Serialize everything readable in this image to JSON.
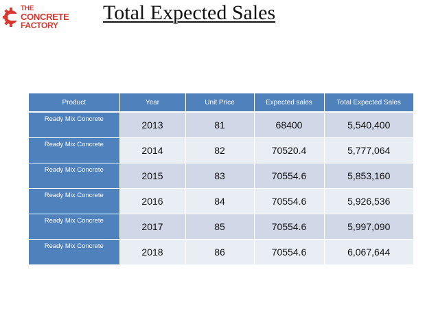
{
  "logo": {
    "line1": "THE",
    "line2": "CONCRETE",
    "line3": "FACTORY",
    "color": "#d6392f"
  },
  "title": "Total Expected Sales",
  "table": {
    "headers": [
      "Product",
      "Year",
      "Unit Price",
      "Expected sales",
      "Total Expected Sales"
    ],
    "rows": [
      {
        "product": "Ready Mix Concrete",
        "year": "2013",
        "unit_price": "81",
        "expected_sales": "68400",
        "total_expected_sales": "5,540,400"
      },
      {
        "product": "Ready Mix Concrete",
        "year": "2014",
        "unit_price": "82",
        "expected_sales": "70520.4",
        "total_expected_sales": "5,777,064"
      },
      {
        "product": "Ready Mix Concrete",
        "year": "2015",
        "unit_price": "83",
        "expected_sales": "70554.6",
        "total_expected_sales": "5,853,160"
      },
      {
        "product": "Ready Mix Concrete",
        "year": "2016",
        "unit_price": "84",
        "expected_sales": "70554.6",
        "total_expected_sales": "5,926,536"
      },
      {
        "product": "Ready Mix Concrete",
        "year": "2017",
        "unit_price": "85",
        "expected_sales": "70554.6",
        "total_expected_sales": "5,997,090"
      },
      {
        "product": "Ready Mix Concrete",
        "year": "2018",
        "unit_price": "86",
        "expected_sales": "70554.6",
        "total_expected_sales": "6,067,644"
      }
    ],
    "colors": {
      "header": "#4f81bd",
      "row_odd": "#d0d8e8",
      "row_even": "#e9edf4"
    }
  }
}
